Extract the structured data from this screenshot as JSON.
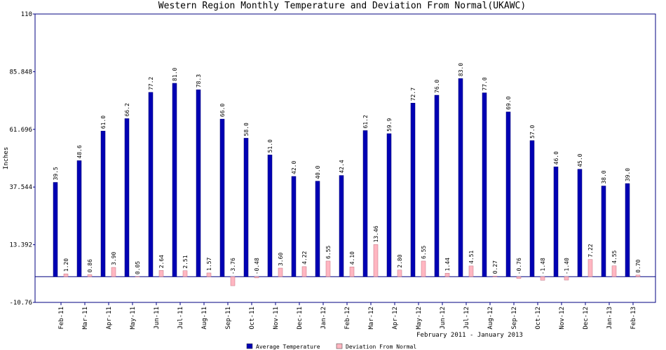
{
  "chart_data": {
    "type": "bar",
    "title": "Western Region Monthly Temperature and Deviation From Normal(UKAWC)",
    "y_label": "Inches",
    "x_label": "February 2011 - January 2013",
    "categories": [
      "Feb-11",
      "Mar-11",
      "Apr-11",
      "May-11",
      "Jun-11",
      "Jul-11",
      "Aug-11",
      "Sep-11",
      "Oct-11",
      "Nov-11",
      "Dec-11",
      "Jan-12",
      "Feb-12",
      "Mar-12",
      "Apr-12",
      "May-12",
      "Jun-12",
      "Jul-12",
      "Aug-12",
      "Sep-12",
      "Oct-12",
      "Nov-12",
      "Dec-12",
      "Jan-13",
      "Feb-13"
    ],
    "series": [
      {
        "name": "Average Temperature",
        "color": "#0000b4",
        "values": [
          39.5,
          48.6,
          61.0,
          66.2,
          77.2,
          81.0,
          78.3,
          66.0,
          58.0,
          51.0,
          42.0,
          40.0,
          42.4,
          61.2,
          59.9,
          72.7,
          76.0,
          83.0,
          77.0,
          69.0,
          57.0,
          46.0,
          45.0,
          38.0,
          39.0
        ],
        "value_labels": [
          "39.5",
          "48.6",
          "61.0",
          "66.2",
          "77.2",
          "81.0",
          "78.3",
          "66.0",
          "58.0",
          "51.0",
          "42.0",
          "40.0",
          "42.4",
          "61.2",
          "59.9",
          "72.7",
          "76.0",
          "83.0",
          "77.0",
          "69.0",
          "57.0",
          "46.0",
          "45.0",
          "38.0",
          "39.0"
        ]
      },
      {
        "name": "Deviation From Normal",
        "color": "#ffb6c1",
        "values": [
          1.2,
          0.86,
          3.9,
          0.05,
          2.64,
          2.51,
          1.57,
          -3.76,
          -0.48,
          3.6,
          4.22,
          6.55,
          4.1,
          13.46,
          2.8,
          6.55,
          1.44,
          4.51,
          0.27,
          -0.76,
          -1.48,
          -1.4,
          7.22,
          4.55,
          0.7
        ],
        "value_labels": [
          "1.20",
          "0.86",
          "3.90",
          "0.05",
          "2.64",
          "2.51",
          "1.57",
          "-3.76",
          "-0.48",
          "3.60",
          "4.22",
          "6.55",
          "4.10",
          "13.46",
          "2.80",
          "6.55",
          "1.44",
          "4.51",
          "0.27",
          "-0.76",
          "-1.48",
          "-1.40",
          "7.22",
          "4.55",
          "0.70"
        ]
      }
    ],
    "ylim": [
      -10.76,
      110
    ],
    "yticks": [
      -10.76,
      13.392,
      37.544,
      61.696,
      85.848,
      110
    ]
  }
}
